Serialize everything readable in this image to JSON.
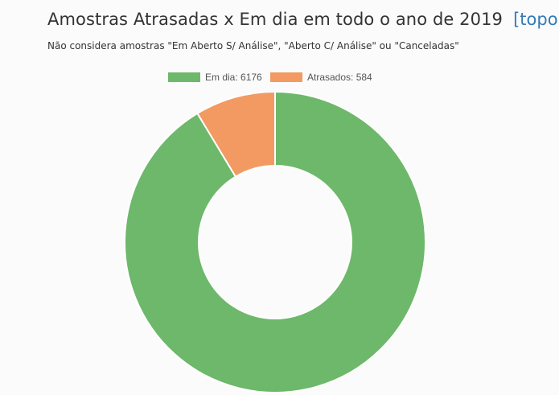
{
  "header": {
    "title": "Amostras Atrasadas x Em dia em todo o ano de 2019",
    "top_link": "[topo]",
    "subtitle": "Não considera amostras \"Em Aberto S/ Análise\", \"Aberto C/ Análise\" ou \"Canceladas\""
  },
  "chart_data": {
    "type": "pie",
    "variant": "doughnut",
    "title": "Amostras Atrasadas x Em dia em todo o ano de 2019",
    "legend_position": "top",
    "labels": [
      "Em dia: 6176",
      "Atrasados: 584"
    ],
    "series_names": [
      "Em dia",
      "Atrasados"
    ],
    "values": [
      6176,
      584
    ],
    "colors": [
      "#6db86a",
      "#f29a62"
    ]
  }
}
